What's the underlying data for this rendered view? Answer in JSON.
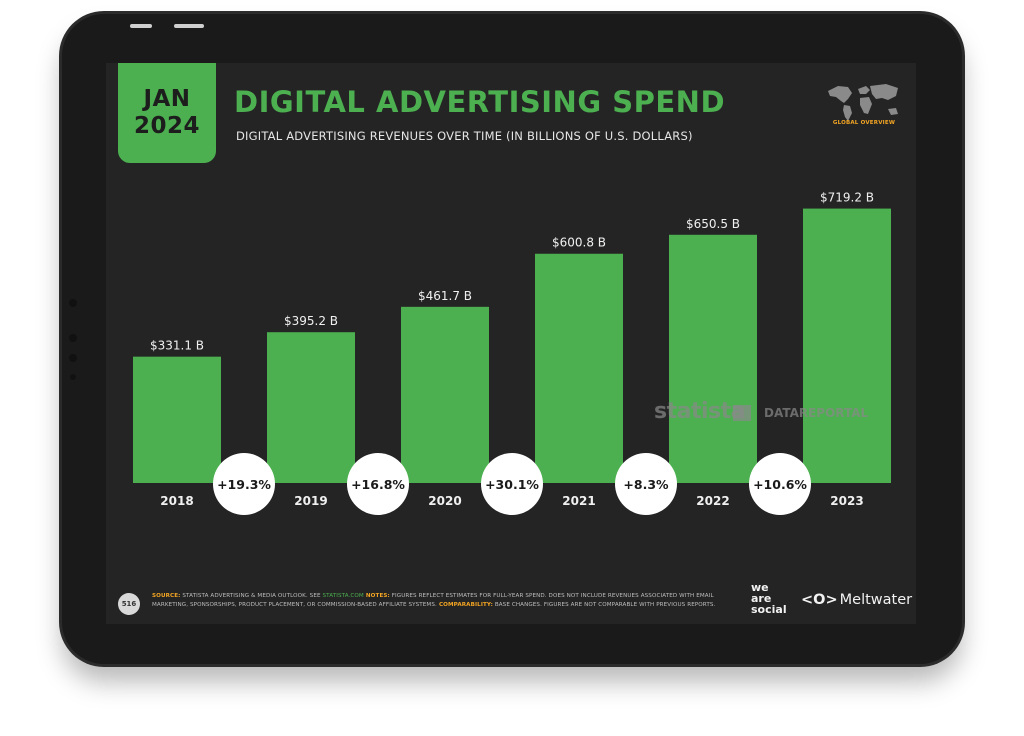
{
  "badge": {
    "month": "JAN",
    "year": "2024"
  },
  "header": {
    "title": "DIGITAL ADVERTISING SPEND",
    "subtitle": "DIGITAL ADVERTISING REVENUES OVER TIME (IN BILLIONS OF U.S. DOLLARS)",
    "map_label": "GLOBAL OVERVIEW"
  },
  "colors": {
    "accent": "#4caf50",
    "background": "#242424",
    "highlight": "#f5a623",
    "bezel": "#1a1a1a"
  },
  "chart_data": {
    "type": "bar",
    "title": "DIGITAL ADVERTISING SPEND",
    "subtitle": "DIGITAL ADVERTISING REVENUES OVER TIME (IN BILLIONS OF U.S. DOLLARS)",
    "categories": [
      "2018",
      "2019",
      "2020",
      "2021",
      "2022",
      "2023"
    ],
    "values": [
      331.1,
      395.2,
      461.7,
      600.8,
      650.5,
      719.2
    ],
    "value_labels": [
      "$331.1 B",
      "$395.2 B",
      "$461.7 B",
      "$600.8 B",
      "$650.5 B",
      "$719.2 B"
    ],
    "growth_labels": [
      "+19.3%",
      "+16.8%",
      "+30.1%",
      "+8.3%",
      "+10.6%"
    ],
    "ylim": [
      0,
      760
    ],
    "grid": false,
    "bar_color": "#4caf50"
  },
  "watermarks": {
    "statista": "statista",
    "datareportal": "DATAREPORTAL"
  },
  "footer": {
    "page_number": "516",
    "source_label": "SOURCE:",
    "source_text": " STATISTA ADVERTISING & MEDIA OUTLOOK. SEE ",
    "source_link": "STATISTA.COM",
    "notes_label": " NOTES:",
    "notes_text": " FIGURES REFLECT ESTIMATES FOR FULL-YEAR SPEND. DOES NOT INCLUDE REVENUES ASSOCIATED WITH EMAIL MARKETING, SPONSORSHIPS, PRODUCT PLACEMENT, OR COMMISSION-BASED AFFILIATE SYSTEMS.",
    "comparability_label": " COMPARABILITY:",
    "comparability_text": " BASE CHANGES. FIGURES ARE NOT COMPARABLE WITH PREVIOUS REPORTS.",
    "brand1_line1": "we",
    "brand1_line2": "are",
    "brand1_line3": "social",
    "brand2_icon": "<O>",
    "brand2": "Meltwater"
  }
}
